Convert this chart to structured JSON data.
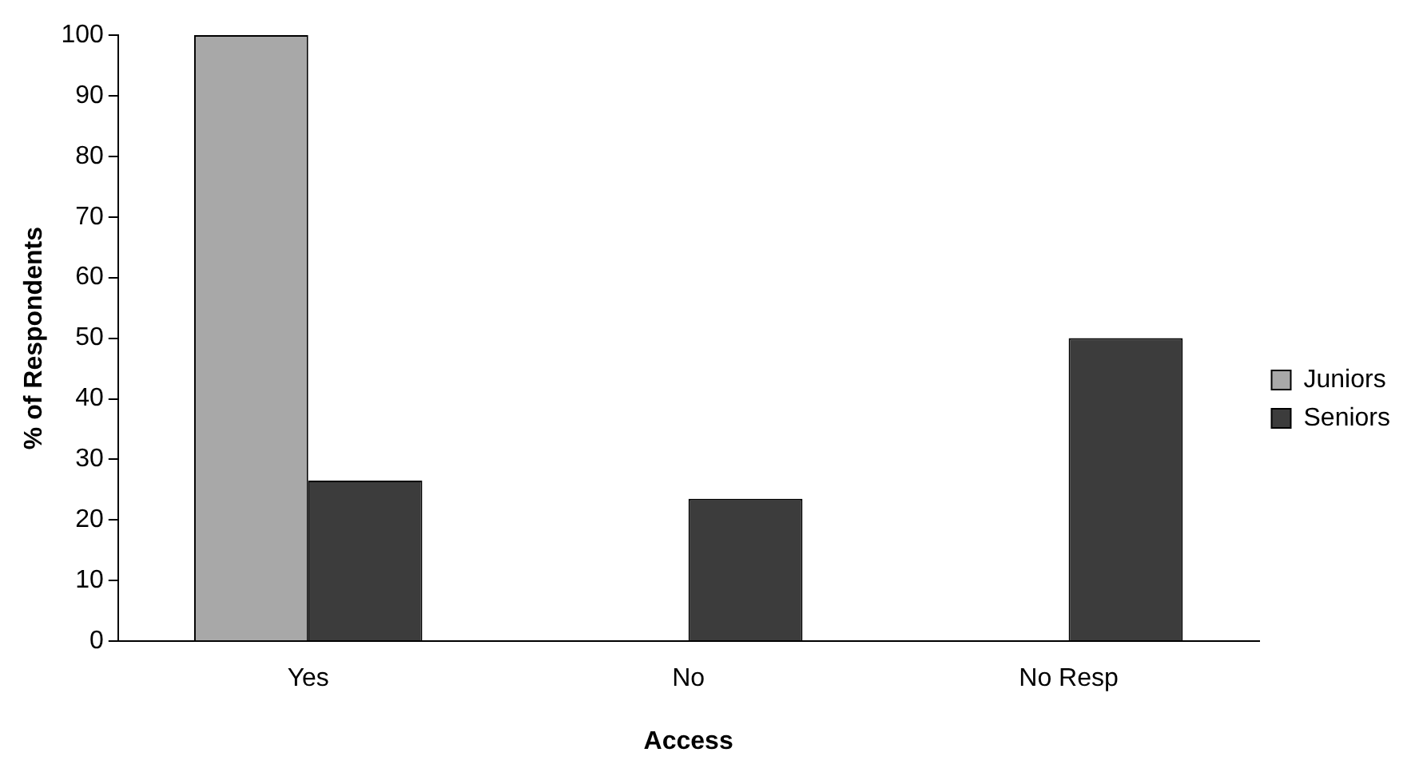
{
  "chart_data": {
    "type": "bar",
    "xlabel": "Access",
    "ylabel": "% of Respondents",
    "categories": [
      "Yes",
      "No",
      "No Resp"
    ],
    "series": [
      {
        "name": "Juniors",
        "color": "#a8a8a8",
        "values": [
          100,
          0,
          0
        ]
      },
      {
        "name": "Seniors",
        "color": "#3c3c3c",
        "values": [
          26.5,
          23.5,
          50
        ]
      }
    ],
    "ylim": [
      0,
      100
    ],
    "yticks": [
      0,
      10,
      20,
      30,
      40,
      50,
      60,
      70,
      80,
      90,
      100
    ],
    "grid": false,
    "legend": "right"
  }
}
